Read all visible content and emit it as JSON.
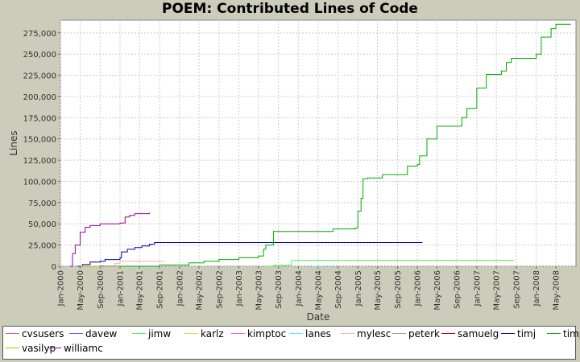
{
  "chart_data": {
    "type": "line",
    "title": "POEM: Contributed Lines of Code",
    "xlabel": "Date",
    "ylabel": "Lines",
    "ylim": [
      0,
      290000
    ],
    "xlim": [
      "2000-01-01",
      "2008-09-01"
    ],
    "y_ticks": [
      0,
      25000,
      50000,
      75000,
      100000,
      125000,
      150000,
      175000,
      200000,
      225000,
      250000,
      275000
    ],
    "y_tick_labels": [
      "0",
      "25,000",
      "50,000",
      "75,000",
      "100,000",
      "125,000",
      "150,000",
      "175,000",
      "200,000",
      "225,000",
      "250,000",
      "275,000"
    ],
    "x_ticks": [
      "2000-01-01",
      "2000-05-01",
      "2000-09-01",
      "2001-01-01",
      "2001-05-01",
      "2001-09-01",
      "2002-01-01",
      "2002-05-01",
      "2002-09-01",
      "2003-01-01",
      "2003-05-01",
      "2003-09-01",
      "2004-01-01",
      "2004-05-01",
      "2004-09-01",
      "2005-01-01",
      "2005-05-01",
      "2005-09-01",
      "2006-01-01",
      "2006-05-01",
      "2006-09-01",
      "2007-01-01",
      "2007-05-01",
      "2007-09-01",
      "2008-01-01",
      "2008-05-01"
    ],
    "x_tick_labels": [
      "Jan-2000",
      "May-2000",
      "Sep-2000",
      "Jan-2001",
      "May-2001",
      "Sep-2001",
      "Jan-2002",
      "May-2002",
      "Sep-2002",
      "Jan-2003",
      "May-2003",
      "Sep-2003",
      "Jan-2004",
      "May-2004",
      "Sep-2004",
      "Jan-2005",
      "May-2005",
      "Sep-2005",
      "Jan-2006",
      "May-2006",
      "Sep-2006",
      "Jan-2007",
      "May-2007",
      "Sep-2007",
      "Jan-2008",
      "May-2008"
    ],
    "grid": true,
    "legend_position": "bottom",
    "series": [
      {
        "name": "cvsusers",
        "color": "#ff5555",
        "x": [
          "2000-05-01",
          "2000-07-01"
        ],
        "y": [
          100,
          300
        ]
      },
      {
        "name": "davew",
        "color": "#5555ff",
        "x": [
          "2000-05-01",
          "2000-09-01",
          "2001-01-01"
        ],
        "y": [
          0,
          500,
          800
        ]
      },
      {
        "name": "jimw",
        "color": "#55ee55",
        "x": [
          "2003-06-01",
          "2003-08-01",
          "2003-11-01",
          "2003-11-20",
          "2007-08-15"
        ],
        "y": [
          0,
          1000,
          1500,
          7000,
          7500
        ]
      },
      {
        "name": "karlz",
        "color": "#eecc44",
        "x": [
          "2000-05-01",
          "2000-10-01",
          "2001-01-01"
        ],
        "y": [
          0,
          500,
          1000
        ]
      },
      {
        "name": "kimptoc",
        "color": "#ff55ff",
        "x": [
          "2000-09-01",
          "2001-01-01"
        ],
        "y": [
          0,
          300
        ]
      },
      {
        "name": "lanes",
        "color": "#55eeee",
        "x": [
          "2004-04-01",
          "2004-06-01"
        ],
        "y": [
          0,
          500
        ]
      },
      {
        "name": "mylesc",
        "color": "#ffaaaa",
        "x": [
          "2000-10-01",
          "2000-12-01",
          "2001-01-01",
          "2001-10-01"
        ],
        "y": [
          0,
          3000,
          6000,
          6500
        ]
      },
      {
        "name": "peterk",
        "color": "#999999",
        "x": [
          "2000-09-01",
          "2001-09-01"
        ],
        "y": [
          0,
          200
        ]
      },
      {
        "name": "samuelg",
        "color": "#aa0000",
        "x": [
          "2001-01-01",
          "2001-06-01"
        ],
        "y": [
          0,
          100
        ]
      },
      {
        "name": "timj",
        "color": "#000099",
        "x": [
          "2000-04-15",
          "2000-05-15",
          "2000-07-01",
          "2000-09-01",
          "2000-10-01",
          "2001-01-01",
          "2001-01-10",
          "2001-02-15",
          "2001-04-01",
          "2001-05-15",
          "2001-07-01",
          "2001-08-01",
          "2006-02-01"
        ],
        "y": [
          0,
          2000,
          5000,
          6000,
          8000,
          10000,
          17000,
          20000,
          22000,
          24000,
          26000,
          28000,
          28000
        ]
      },
      {
        "name": "timp",
        "color": "#00aa00",
        "x": [
          "2001-01-01",
          "2001-09-01",
          "2002-01-01",
          "2002-03-01",
          "2002-06-01",
          "2002-09-01",
          "2003-01-01",
          "2003-05-01",
          "2003-06-01",
          "2003-06-15",
          "2003-08-01",
          "2004-08-01",
          "2004-12-15",
          "2005-01-01",
          "2005-01-20",
          "2005-02-01",
          "2005-03-01",
          "2005-06-01",
          "2005-10-01",
          "2005-11-01",
          "2006-01-01",
          "2006-01-15",
          "2006-03-01",
          "2006-05-01",
          "2006-06-15",
          "2006-08-01",
          "2006-10-01",
          "2006-11-01",
          "2007-01-01",
          "2007-03-01",
          "2007-04-01",
          "2007-06-01",
          "2007-07-01",
          "2007-08-01",
          "2007-12-01",
          "2008-01-01",
          "2008-02-01",
          "2008-04-01",
          "2008-05-01",
          "2008-08-01"
        ],
        "y": [
          0,
          1500,
          1500,
          4000,
          6000,
          8000,
          10000,
          12000,
          20000,
          25000,
          41000,
          44000,
          45000,
          65000,
          80000,
          103000,
          104000,
          108000,
          108000,
          118000,
          120000,
          130000,
          150000,
          165000,
          165000,
          165000,
          175000,
          186000,
          210000,
          226000,
          226000,
          230000,
          240000,
          245000,
          245000,
          250000,
          270000,
          280000,
          285000,
          285000
        ]
      },
      {
        "name": "vasilyp",
        "color": "#bbbb00",
        "x": [
          "2000-05-01",
          "2000-09-01"
        ],
        "y": [
          0,
          100
        ]
      },
      {
        "name": "williamc",
        "color": "#990099",
        "x": [
          "2000-03-01",
          "2000-03-15",
          "2000-04-01",
          "2000-05-01",
          "2000-06-01",
          "2000-07-01",
          "2000-09-01",
          "2001-01-01",
          "2001-02-01",
          "2001-03-01",
          "2001-04-01",
          "2001-07-01"
        ],
        "y": [
          0,
          15000,
          25000,
          40000,
          46000,
          48000,
          50000,
          51000,
          58000,
          60000,
          62000,
          63000
        ]
      }
    ]
  }
}
